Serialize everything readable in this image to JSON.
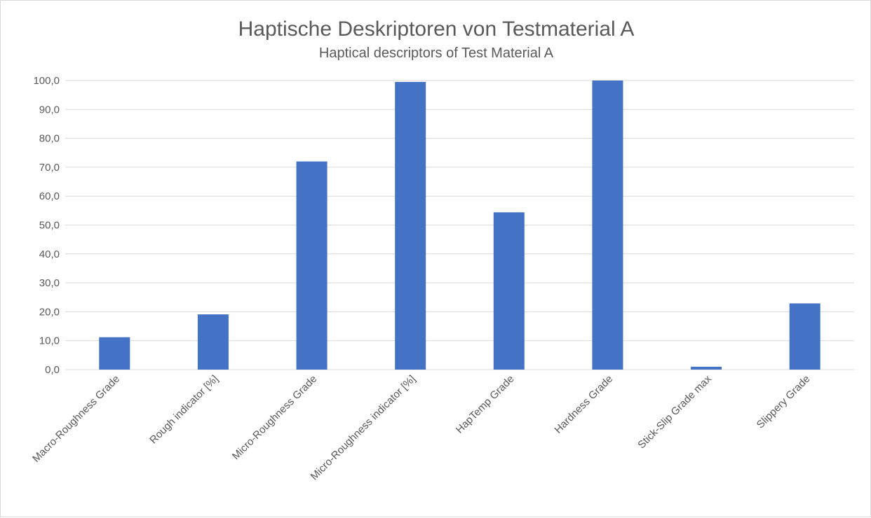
{
  "chart_data": {
    "type": "bar",
    "title": "Haptische Deskriptoren von Testmaterial A",
    "subtitle": "Haptical descriptors of Test Material A",
    "xlabel": "",
    "ylabel": "",
    "categories": [
      "Macro-Roughness Grade",
      "Rough  indicator [%]",
      "Micro-Roughness Grade",
      "Micro-Roughness  indicator [%]",
      "HapTemp Grade",
      "Hardness Grade",
      "Stick-Slip Grade max",
      "Slippery Grade"
    ],
    "values": [
      11.2,
      19.1,
      72.0,
      99.5,
      54.4,
      100.0,
      1.0,
      22.9
    ],
    "ylim": [
      0,
      100
    ],
    "yticks": [
      "0,0",
      "10,0",
      "20,0",
      "30,0",
      "40,0",
      "50,0",
      "60,0",
      "70,0",
      "80,0",
      "90,0",
      "100,0"
    ],
    "grid": true,
    "bar_color": "#4472C4",
    "grid_color": "#d9d9d9"
  }
}
